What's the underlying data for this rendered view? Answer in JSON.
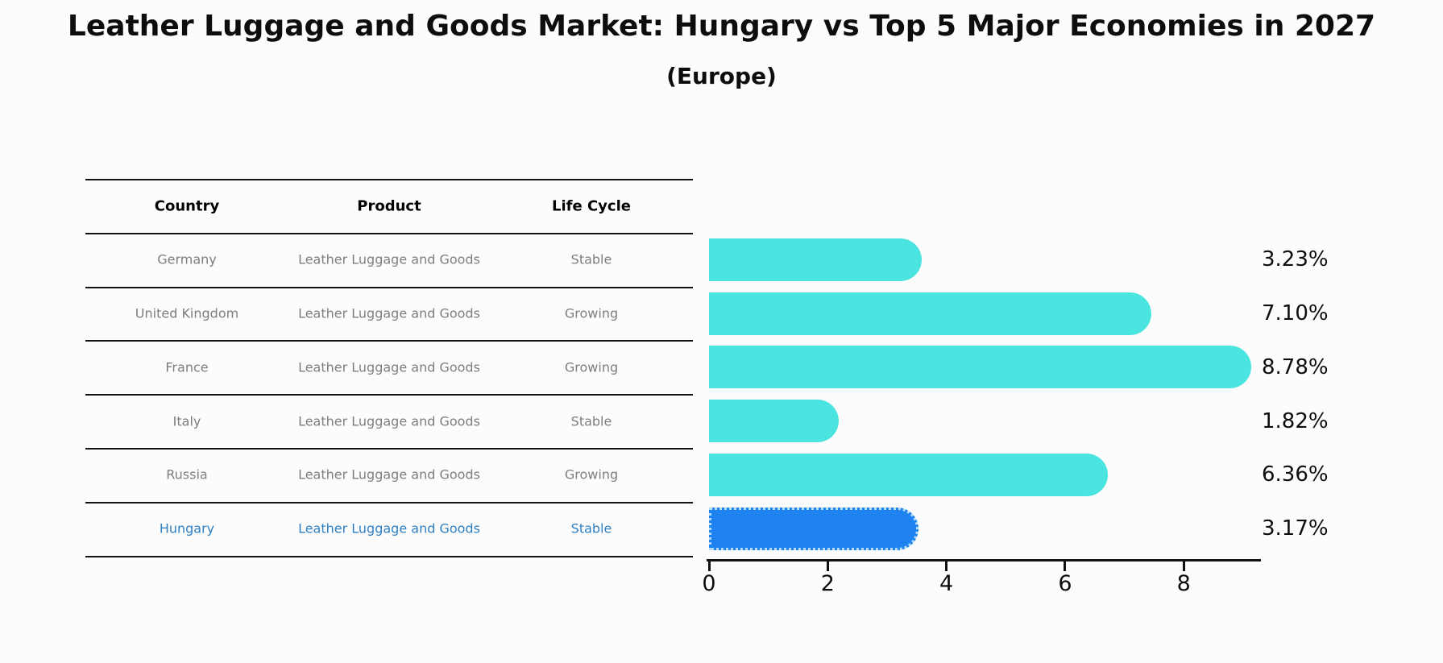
{
  "title": "Leather Luggage and Goods Market: Hungary vs Top 5 Major Economies in 2027",
  "subtitle": "(Europe)",
  "table": {
    "headers": [
      "Country",
      "Product",
      "Life Cycle"
    ],
    "rows": [
      {
        "country": "Germany",
        "product": "Leather Luggage and Goods",
        "life_cycle": "Stable",
        "highlight": false
      },
      {
        "country": "United Kingdom",
        "product": "Leather Luggage and Goods",
        "life_cycle": "Growing",
        "highlight": false
      },
      {
        "country": "France",
        "product": "Leather Luggage and Goods",
        "life_cycle": "Growing",
        "highlight": false
      },
      {
        "country": "Italy",
        "product": "Leather Luggage and Goods",
        "life_cycle": "Stable",
        "highlight": false
      },
      {
        "country": "Russia",
        "product": "Leather Luggage and Goods",
        "life_cycle": "Growing",
        "highlight": false
      },
      {
        "country": "Hungary",
        "product": "Leather Luggage and Goods",
        "life_cycle": "Stable",
        "highlight": true
      }
    ]
  },
  "chart_data": {
    "type": "bar",
    "orientation": "horizontal",
    "title": "Leather Luggage and Goods Market: Hungary vs Top 5 Major Economies in 2027 (Europe)",
    "categories": [
      "Germany",
      "United Kingdom",
      "France",
      "Italy",
      "Russia",
      "Hungary"
    ],
    "values": [
      3.23,
      7.1,
      8.78,
      1.82,
      6.36,
      3.17
    ],
    "value_labels": [
      "3.23%",
      "7.10%",
      "8.78%",
      "1.82%",
      "6.36%",
      "3.17%"
    ],
    "x_ticks": [
      0,
      2,
      4,
      6,
      8
    ],
    "xlim": [
      0,
      9.3
    ],
    "grid": false,
    "legend": false,
    "highlight_index": 5
  },
  "colors": {
    "bar": "#4ae5e0",
    "highlight_bar": "#1e82f0",
    "highlight_border": "#b5ddf7",
    "highlight_text": "#2e7fc2",
    "row_text": "#7d7d7d",
    "axis": "#111111"
  }
}
